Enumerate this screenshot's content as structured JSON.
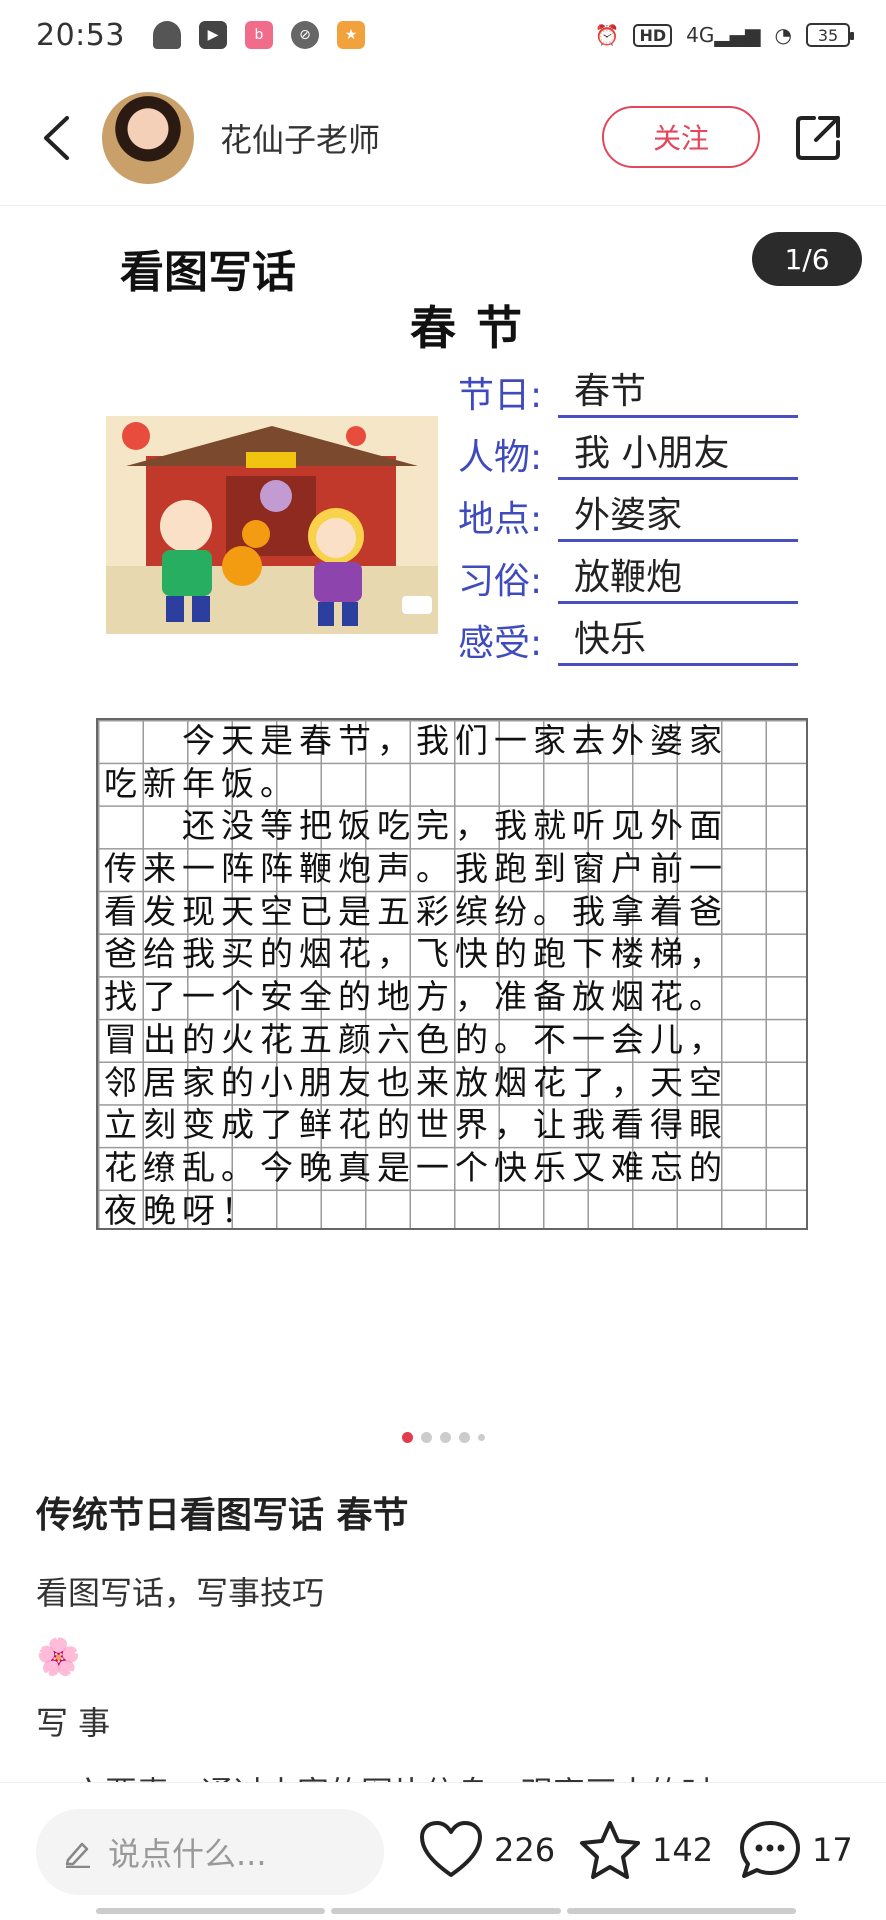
{
  "status_bar": {
    "time": "20:53",
    "network": "4G",
    "hd": "HD",
    "battery": "35"
  },
  "header": {
    "author_name": "花仙子老师",
    "follow_label": "关注"
  },
  "image": {
    "counter": "1/6",
    "title": "看图写话",
    "subtitle": "春节",
    "info": [
      {
        "label": "节日:",
        "value": "春节"
      },
      {
        "label": "人物:",
        "value": "我 小朋友"
      },
      {
        "label": "地点:",
        "value": "外婆家"
      },
      {
        "label": "习俗:",
        "value": "放鞭炮"
      },
      {
        "label": "感受:",
        "value": "快乐"
      }
    ],
    "essay_lines": [
      "　　今天是春节，我们一家去外婆家",
      "吃新年饭。",
      "　　还没等把饭吃完，我就听见外面",
      "传来一阵阵鞭炮声。我跑到窗户前一",
      "看发现天空已是五彩缤纷。我拿着爸",
      "爸给我买的烟花，飞快的跑下楼梯，",
      "找了一个安全的地方，准备放烟花。",
      "冒出的火花五颜六色的。不一会儿，",
      "邻居家的小朋友也来放烟花了，天空",
      "立刻变成了鲜花的世界，让我看得眼",
      "花缭乱。今晚真是一个快乐又难忘的",
      "夜晚呀！"
    ]
  },
  "post": {
    "title": "传统节日看图写话 春节",
    "line1": "看图写话，写事技巧",
    "flower": "🌸",
    "line2": "写 事",
    "line3": "✔ 六要素：通过丰富的图片信息，观察画中的时"
  },
  "bottom_bar": {
    "comment_placeholder": "说点什么...",
    "likes": "226",
    "stars": "142",
    "comments": "17"
  },
  "colors": {
    "accent": "#e2475c",
    "info_label": "#3f4bbd"
  }
}
